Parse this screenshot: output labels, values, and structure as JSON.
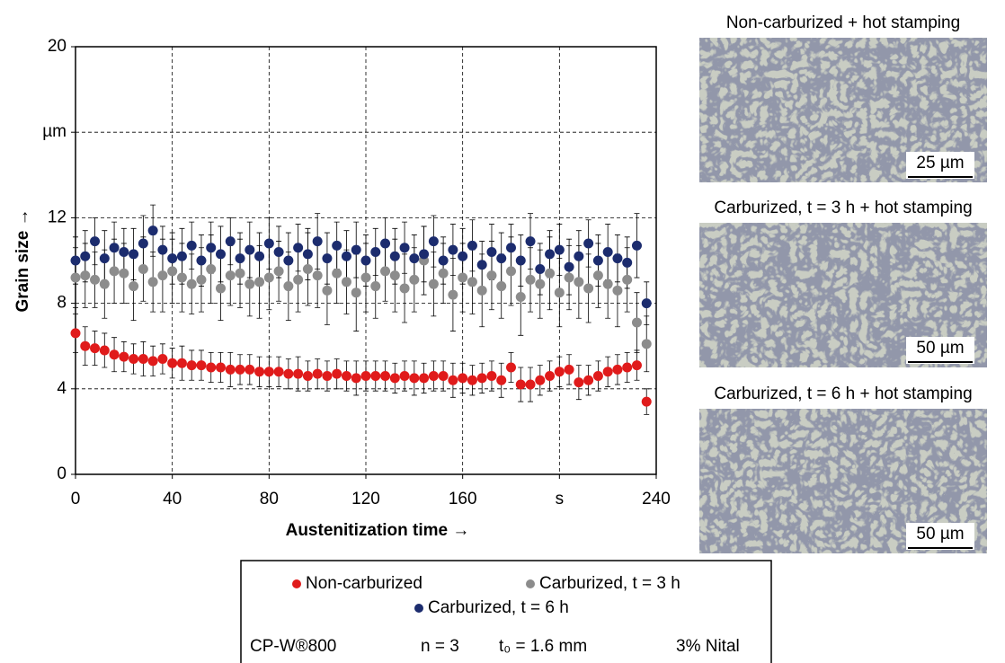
{
  "chart_data": {
    "type": "scatter",
    "xlabel": "Austenitization time →",
    "ylabel": "Grain size →",
    "xlim": [
      0,
      240
    ],
    "xticks": [
      0,
      40,
      80,
      120,
      160,
      {
        "value": 200,
        "label": "s"
      },
      240
    ],
    "ylim": [
      0,
      20
    ],
    "yticks": [
      0,
      4,
      8,
      12,
      {
        "value": 16,
        "label": "µm"
      },
      20
    ],
    "grid": true,
    "x": [
      0,
      4,
      8,
      12,
      16,
      20,
      24,
      28,
      32,
      36,
      40,
      44,
      48,
      52,
      56,
      60,
      64,
      68,
      72,
      76,
      80,
      84,
      88,
      92,
      96,
      100,
      104,
      108,
      112,
      116,
      120,
      124,
      128,
      132,
      136,
      140,
      144,
      148,
      152,
      156,
      160,
      164,
      168,
      172,
      176,
      180,
      184,
      188,
      192,
      196,
      200,
      204,
      208,
      212,
      216,
      220,
      224,
      228,
      232,
      236
    ],
    "series": [
      {
        "name": "Carburized, t = 3 h",
        "color": "#8c8c8c",
        "values": [
          9.2,
          9.3,
          9.1,
          8.9,
          9.5,
          9.4,
          8.8,
          9.6,
          9.0,
          9.3,
          9.5,
          9.2,
          8.9,
          9.1,
          9.6,
          8.7,
          9.3,
          9.4,
          8.9,
          9.0,
          9.2,
          9.5,
          8.8,
          9.1,
          9.6,
          9.3,
          8.6,
          9.4,
          9.0,
          8.5,
          9.2,
          8.8,
          9.5,
          9.3,
          8.7,
          9.1,
          10.0,
          8.9,
          9.4,
          8.4,
          9.2,
          9.0,
          8.6,
          9.3,
          8.8,
          9.5,
          8.3,
          9.1,
          8.9,
          9.4,
          8.5,
          9.2,
          9.0,
          8.7,
          9.3,
          8.9,
          8.6,
          9.1,
          7.1,
          6.1
        ],
        "errors": [
          1.4,
          1.5,
          1.3,
          1.6,
          1.5,
          1.4,
          1.6,
          1.5,
          1.4,
          1.7,
          1.5,
          1.6,
          1.4,
          1.5,
          1.6,
          1.5,
          1.4,
          1.6,
          1.5,
          1.7,
          1.5,
          1.4,
          1.6,
          1.5,
          1.7,
          1.5,
          1.6,
          1.4,
          1.5,
          1.8,
          1.6,
          1.5,
          1.4,
          1.7,
          1.6,
          1.5,
          1.6,
          1.5,
          1.4,
          1.7,
          1.6,
          1.5,
          1.7,
          1.6,
          1.5,
          1.6,
          1.8,
          1.5,
          1.6,
          1.7,
          1.6,
          1.5,
          1.7,
          1.6,
          1.5,
          1.6,
          1.7,
          1.5,
          1.4,
          1.3
        ]
      },
      {
        "name": "Carburized, t = 6 h",
        "color": "#1c2c6e",
        "values": [
          10.0,
          10.2,
          10.9,
          10.1,
          10.6,
          10.4,
          10.3,
          10.8,
          11.4,
          10.5,
          10.1,
          10.2,
          10.7,
          10.0,
          10.6,
          10.3,
          10.9,
          10.1,
          10.5,
          10.2,
          10.8,
          10.4,
          10.0,
          10.6,
          10.3,
          10.9,
          10.1,
          10.7,
          10.2,
          10.5,
          10.0,
          10.4,
          10.8,
          10.2,
          10.6,
          10.1,
          10.3,
          10.9,
          10.0,
          10.5,
          10.2,
          10.7,
          9.8,
          10.4,
          10.1,
          10.6,
          10.0,
          10.9,
          9.6,
          10.3,
          10.5,
          9.7,
          10.2,
          10.8,
          10.0,
          10.4,
          10.1,
          9.9,
          10.7,
          8.0
        ],
        "errors": [
          1.1,
          1.2,
          1.1,
          1.3,
          1.2,
          1.1,
          1.2,
          1.3,
          1.2,
          1.1,
          1.2,
          1.3,
          1.1,
          1.2,
          1.2,
          1.3,
          1.1,
          1.2,
          1.3,
          1.1,
          1.2,
          1.2,
          1.3,
          1.1,
          1.2,
          1.3,
          1.2,
          1.1,
          1.2,
          1.3,
          1.2,
          1.1,
          1.2,
          1.3,
          1.2,
          1.1,
          1.3,
          1.2,
          1.1,
          1.2,
          1.3,
          1.2,
          1.1,
          1.3,
          1.2,
          1.1,
          1.2,
          1.3,
          1.2,
          1.1,
          1.2,
          1.3,
          1.2,
          1.1,
          1.2,
          1.3,
          1.1,
          1.2,
          1.5,
          1.0
        ]
      },
      {
        "name": "Non-carburized",
        "color": "#e01b1b",
        "values": [
          6.6,
          6.0,
          5.9,
          5.8,
          5.6,
          5.5,
          5.4,
          5.4,
          5.3,
          5.4,
          5.2,
          5.2,
          5.1,
          5.1,
          5.0,
          5.0,
          4.9,
          4.9,
          4.9,
          4.8,
          4.8,
          4.8,
          4.7,
          4.7,
          4.6,
          4.7,
          4.6,
          4.7,
          4.6,
          4.5,
          4.6,
          4.6,
          4.6,
          4.5,
          4.6,
          4.5,
          4.5,
          4.6,
          4.6,
          4.4,
          4.5,
          4.4,
          4.5,
          4.6,
          4.4,
          5.0,
          4.2,
          4.2,
          4.4,
          4.6,
          4.8,
          4.9,
          4.3,
          4.4,
          4.6,
          4.8,
          4.9,
          5.0,
          5.1,
          3.4
        ],
        "errors": [
          0.9,
          0.9,
          0.8,
          0.8,
          0.8,
          0.7,
          0.7,
          0.8,
          0.7,
          0.7,
          0.7,
          0.8,
          0.7,
          0.7,
          0.7,
          0.7,
          0.8,
          0.7,
          0.7,
          0.7,
          0.7,
          0.7,
          0.7,
          0.8,
          0.7,
          0.7,
          0.7,
          0.7,
          0.7,
          0.8,
          0.7,
          0.7,
          0.7,
          0.7,
          0.7,
          0.8,
          0.7,
          0.7,
          0.7,
          0.8,
          0.7,
          0.7,
          0.7,
          0.7,
          0.8,
          0.7,
          0.8,
          0.8,
          0.7,
          0.7,
          0.7,
          0.7,
          0.8,
          0.7,
          0.7,
          0.7,
          0.7,
          0.7,
          0.7,
          0.6
        ]
      }
    ]
  },
  "legend_order": [
    2,
    0,
    1
  ],
  "footer": [
    "CP-W®800",
    "n = 3",
    "t₀ = 1.6 mm",
    "3% Nital"
  ],
  "micrographs": [
    {
      "title": "Non-carburized + hot stamping",
      "scale_label": "25 µm"
    },
    {
      "title": "Carburized, t = 3 h + hot stamping",
      "scale_label": "50 µm"
    },
    {
      "title": "Carburized, t = 6 h + hot stamping",
      "scale_label": "50 µm"
    }
  ]
}
